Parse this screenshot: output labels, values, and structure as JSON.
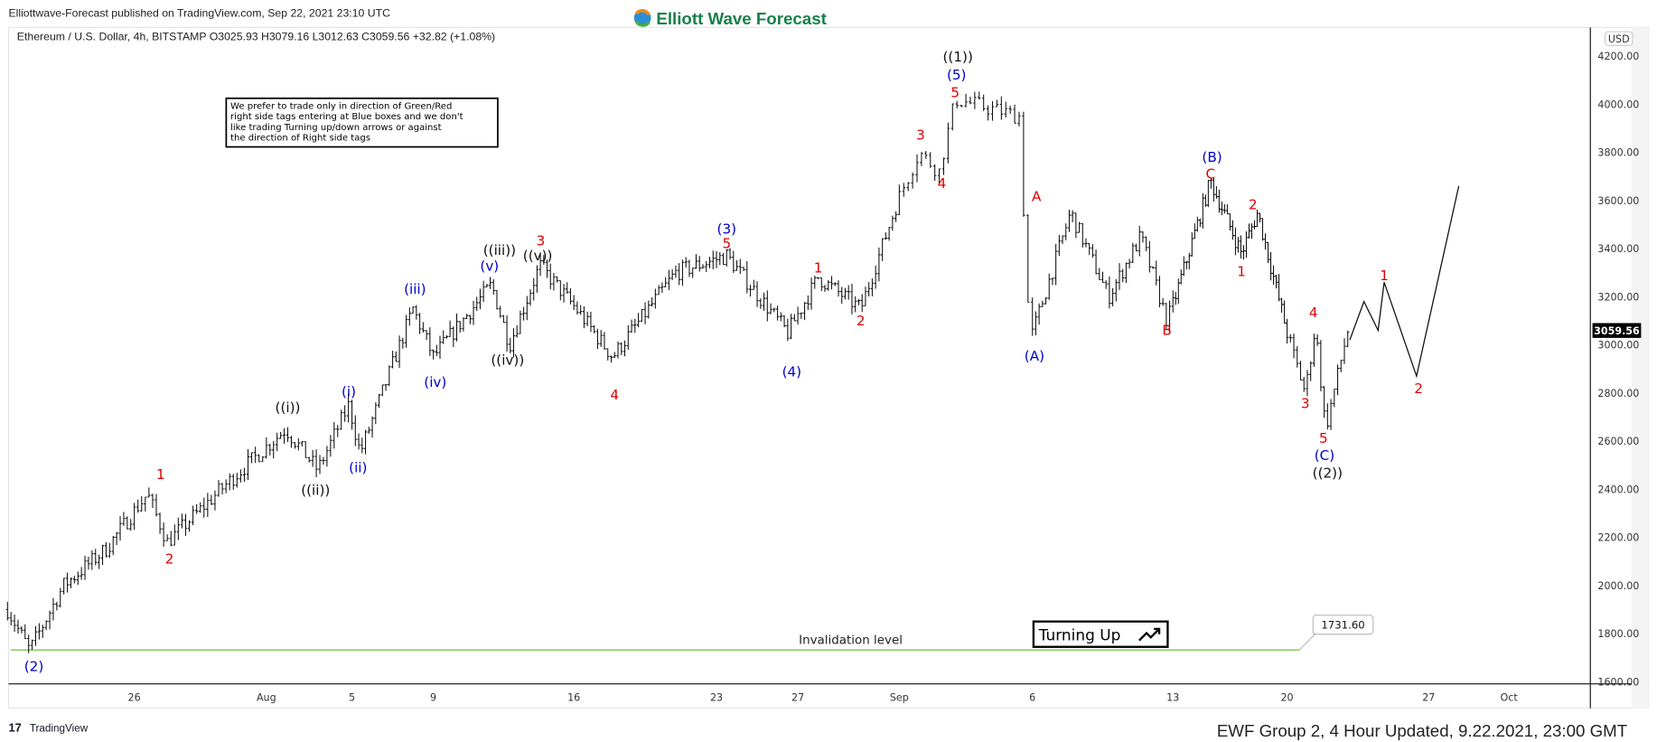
{
  "header": {
    "published": "Elliottwave-Forecast published on TradingView.com, Sep 22, 2021 23:10 UTC",
    "symbol_line": "Ethereum / U.S. Dollar, 4h, BITSTAMP  O3025.93  H3079.16  L3012.63  C3059.56  +32.82 (+1.08%)",
    "logo_text": "Elliott Wave Forecast"
  },
  "note_box": [
    "We prefer to trade only in direction of Green/Red",
    "right side tags entering at Blue boxes and we don't",
    "like trading Turning up/down arrows or against",
    "the direction of Right side tags"
  ],
  "footer": {
    "brand": "TradingView",
    "update": "EWF Group 2, 4 Hour Updated, 9.22.2021, 23:00 GMT"
  },
  "colors": {
    "red": "#e00000",
    "blue": "#0000cc",
    "black": "#111111",
    "invalidation": "#8fd16a"
  },
  "chart_data": {
    "type": "ohlc",
    "title": "Ethereum / U.S. Dollar, 4h, BITSTAMP",
    "currency": "USD",
    "ylim": [
      1600,
      4200
    ],
    "y_ticks": [
      "4200.00",
      "4000.00",
      "3800.00",
      "3600.00",
      "3400.00",
      "3200.00",
      "3000.00",
      "2800.00",
      "2600.00",
      "2400.00",
      "2200.00",
      "2000.00",
      "1800.00",
      "1600.00"
    ],
    "y_tick_values": [
      4200,
      4000,
      3800,
      3600,
      3400,
      3200,
      3000,
      2800,
      2600,
      2400,
      2200,
      2000,
      1800,
      1600
    ],
    "x_ticks": [
      {
        "label": "26",
        "day": 6
      },
      {
        "label": "Aug",
        "day": 12
      },
      {
        "label": "5",
        "day": 16
      },
      {
        "label": "9",
        "day": 20
      },
      {
        "label": "16",
        "day": 27
      },
      {
        "label": "23",
        "day": 34
      },
      {
        "label": "27",
        "day": 38
      },
      {
        "label": "Sep",
        "day": 43
      },
      {
        "label": "6",
        "day": 48
      },
      {
        "label": "13",
        "day": 55
      },
      {
        "label": "20",
        "day": 62
      },
      {
        "label": "27",
        "day": 69
      },
      {
        "label": "Oct",
        "day": 73
      }
    ],
    "x_unit": "days since Jul 20, 2021",
    "last_price": "3059.56",
    "price_path": [
      [
        0,
        1900
      ],
      [
        1.05,
        1730
      ],
      [
        2.65,
        2000
      ],
      [
        4.65,
        2150
      ],
      [
        6.6,
        2380
      ],
      [
        7.5,
        2180
      ],
      [
        10.5,
        2450
      ],
      [
        12.9,
        2650
      ],
      [
        14.4,
        2480
      ],
      [
        15.85,
        2750
      ],
      [
        16.4,
        2550
      ],
      [
        19,
        3150
      ],
      [
        20,
        2950
      ],
      [
        22.9,
        3250
      ],
      [
        23.8,
        3000
      ],
      [
        25.3,
        3330
      ],
      [
        27.1,
        3150
      ],
      [
        28.9,
        2950
      ],
      [
        32,
        3300
      ],
      [
        34.5,
        3370
      ],
      [
        37.5,
        3050
      ],
      [
        39,
        3280
      ],
      [
        41.1,
        3150
      ],
      [
        43.75,
        3800
      ],
      [
        44.5,
        3720
      ],
      [
        45.1,
        4020
      ],
      [
        47.5,
        3950
      ],
      [
        47.9,
        3020
      ],
      [
        49.9,
        3550
      ],
      [
        51.8,
        3200
      ],
      [
        53.4,
        3450
      ],
      [
        54.7,
        3100
      ],
      [
        57.3,
        3680
      ],
      [
        59.2,
        3380
      ],
      [
        60.2,
        3550
      ],
      [
        62.9,
        2800
      ],
      [
        63.4,
        3080
      ],
      [
        63.9,
        2650
      ],
      [
        65.0,
        3060
      ]
    ],
    "projection_path": [
      [
        65.1,
        3020
      ],
      [
        65.8,
        3180
      ],
      [
        66.5,
        3060
      ],
      [
        66.8,
        3260
      ],
      [
        68.4,
        2870
      ],
      [
        70.5,
        3660
      ]
    ],
    "wave_labels": [
      {
        "text": "(2)",
        "day": 1.25,
        "price": 1666,
        "color": "blue"
      },
      {
        "text": "1",
        "day": 7.2,
        "price": 2465,
        "color": "red"
      },
      {
        "text": "2",
        "day": 7.6,
        "price": 2114,
        "color": "red"
      },
      {
        "text": "((i))",
        "day": 13,
        "price": 2742,
        "color": "black"
      },
      {
        "text": "((ii))",
        "day": 14.3,
        "price": 2399,
        "color": "black"
      },
      {
        "text": "(i)",
        "day": 15.85,
        "price": 2808,
        "color": "blue"
      },
      {
        "text": "(ii)",
        "day": 16.3,
        "price": 2492,
        "color": "blue"
      },
      {
        "text": "(iii)",
        "day": 19.1,
        "price": 3234,
        "color": "blue"
      },
      {
        "text": "(iv)",
        "day": 20.1,
        "price": 2847,
        "color": "blue"
      },
      {
        "text": "(v)",
        "day": 22.8,
        "price": 3330,
        "color": "blue"
      },
      {
        "text": "((iii))",
        "day": 23.3,
        "price": 3395,
        "color": "black"
      },
      {
        "text": "((iv))",
        "day": 23.7,
        "price": 2940,
        "color": "black"
      },
      {
        "text": "3",
        "day": 25.35,
        "price": 3436,
        "color": "red"
      },
      {
        "text": "((v))",
        "day": 25.2,
        "price": 3374,
        "color": "black"
      },
      {
        "text": "4",
        "day": 29,
        "price": 2795,
        "color": "red"
      },
      {
        "text": "(3)",
        "day": 34.5,
        "price": 3484,
        "color": "blue"
      },
      {
        "text": "5",
        "day": 34.5,
        "price": 3423,
        "color": "red"
      },
      {
        "text": "(4)",
        "day": 37.7,
        "price": 2891,
        "color": "blue"
      },
      {
        "text": "1",
        "day": 39,
        "price": 3322,
        "color": "red"
      },
      {
        "text": "2",
        "day": 41.1,
        "price": 3102,
        "color": "red"
      },
      {
        "text": "3",
        "day": 43.8,
        "price": 3875,
        "color": "red"
      },
      {
        "text": "4",
        "day": 44.6,
        "price": 3673,
        "color": "red"
      },
      {
        "text": "5",
        "day": 45.1,
        "price": 4051,
        "color": "red"
      },
      {
        "text": "(5)",
        "day": 45.15,
        "price": 4125,
        "color": "blue"
      },
      {
        "text": "((1))",
        "day": 45.2,
        "price": 4200,
        "color": "black"
      },
      {
        "text": "A",
        "day": 48.2,
        "price": 3620,
        "color": "red"
      },
      {
        "text": "(A)",
        "day": 48.1,
        "price": 2957,
        "color": "blue"
      },
      {
        "text": "B",
        "day": 54.7,
        "price": 3063,
        "color": "red"
      },
      {
        "text": "(B)",
        "day": 57.4,
        "price": 3783,
        "color": "blue"
      },
      {
        "text": "C",
        "day": 57.3,
        "price": 3713,
        "color": "red"
      },
      {
        "text": "2",
        "day": 59.9,
        "price": 3585,
        "color": "red"
      },
      {
        "text": "1",
        "day": 59.2,
        "price": 3308,
        "color": "red"
      },
      {
        "text": "4",
        "day": 63.3,
        "price": 3137,
        "color": "red"
      },
      {
        "text": "3",
        "day": 62.9,
        "price": 2760,
        "color": "red"
      },
      {
        "text": "5",
        "day": 63.8,
        "price": 2615,
        "color": "red"
      },
      {
        "text": "(C)",
        "day": 63.85,
        "price": 2544,
        "color": "blue"
      },
      {
        "text": "((2))",
        "day": 64,
        "price": 2470,
        "color": "black"
      },
      {
        "text": "1",
        "day": 66.8,
        "price": 3291,
        "color": "red"
      },
      {
        "text": "2",
        "day": 68.5,
        "price": 2821,
        "color": "red"
      }
    ],
    "invalidation": {
      "label": "Invalidation level",
      "price": 1731.6,
      "price_label": "1731.60",
      "start_day": 0,
      "end_day": 62.6
    },
    "signal": {
      "label": "Turning Up",
      "arrow": "trend-up-arrow-icon"
    }
  }
}
